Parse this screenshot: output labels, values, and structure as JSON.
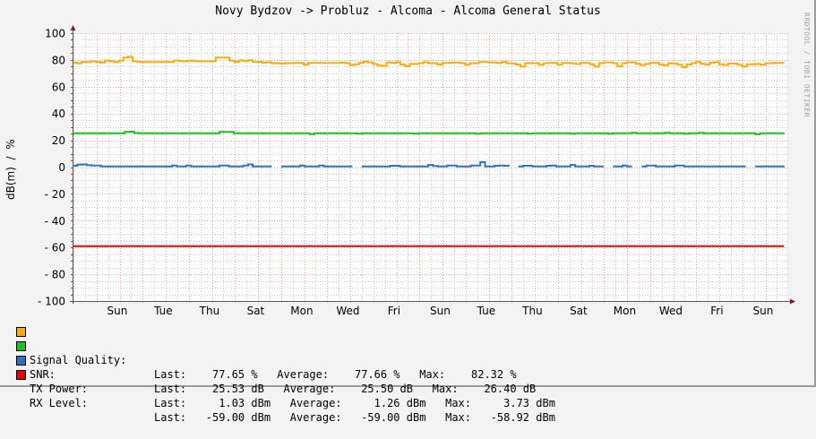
{
  "title": "Novy Bydzov -> Probluz - Alcoma - Alcoma General Status",
  "watermark": "RRDTOOL / TOBI OETIKER",
  "colors": {
    "signal_quality": "#ffab00",
    "snr": "#19c119",
    "tx_power": "#2c72cc",
    "rx_level": "#ee0000",
    "major_grid": "#e8a0a0",
    "minor_grid": "#cccccc",
    "axis": "#555555",
    "arrow": "#8b1a1a"
  },
  "chart_data": {
    "type": "line",
    "title": "Novy Bydzov -> Probluz - Alcoma - Alcoma General Status",
    "xlabel": "",
    "ylabel": "dB(m) / %",
    "ylim": [
      -100,
      100
    ],
    "yticks": [
      100,
      80,
      60,
      40,
      20,
      0,
      -20,
      -40,
      -60,
      -80,
      -100
    ],
    "ytick_labels": [
      "100",
      "80",
      "60",
      "40",
      "20",
      "0",
      "- 20",
      "- 40",
      "- 60",
      "- 80",
      "- 100"
    ],
    "xtick_labels": [
      "Sun",
      "Tue",
      "Thu",
      "Sat",
      "Mon",
      "Wed",
      "Fri",
      "Sun",
      "Tue",
      "Thu",
      "Sat",
      "Mon",
      "Wed",
      "Fri",
      "Sun"
    ],
    "grid": true,
    "legend_position": "bottom",
    "x_days": 31,
    "series": [
      {
        "name": "Signal Quality",
        "unit": "%",
        "values": [
          78,
          77.5,
          78.5,
          78.4,
          79,
          78.5,
          78,
          79.5,
          79,
          78.3,
          79.5,
          81.8,
          82.3,
          79,
          78.5,
          78.4,
          78.4,
          78.4,
          78.4,
          78.4,
          78.4,
          78.4,
          79.6,
          79.2,
          79,
          79.5,
          79.2,
          79,
          79,
          79,
          79,
          81.8,
          81.8,
          81.8,
          79.4,
          78.5,
          79.6,
          79.3,
          79.8,
          78.6,
          78.6,
          78,
          78.3,
          77.6,
          77.6,
          77.3,
          77.6,
          77.6,
          77.8,
          77.8,
          76.5,
          77.8,
          77.8,
          77.8,
          77.8,
          77.8,
          77.8,
          77.8,
          78,
          77.6,
          76.2,
          76.8,
          77.8,
          78.8,
          78.2,
          77,
          76,
          75.6,
          78.2,
          77.8,
          78.3,
          76.6,
          75.3,
          77,
          77,
          77.6,
          78.3,
          77.6,
          77.6,
          76.6,
          77.8,
          77.8,
          78,
          78,
          77.6,
          76.4,
          77.6,
          77.5,
          78.5,
          78.5,
          78.2,
          78.1,
          77.8,
          78.5,
          77.5,
          77.3,
          76.6,
          75.1,
          77.6,
          77.6,
          77.6,
          76.3,
          77.6,
          77.8,
          77.8,
          76.5,
          77.8,
          77.8,
          77.4,
          76.9,
          77.8,
          77.8,
          76.8,
          75,
          77.6,
          78.2,
          78.2,
          77.5,
          75.2,
          77.6,
          78.2,
          78.1,
          77.1,
          76.2,
          77,
          77.7,
          77.7,
          76.6,
          76.1,
          77.5,
          77.3,
          76.5,
          74.6,
          76.6,
          77.6,
          78.5,
          77.1,
          76.6,
          77.9,
          78.4,
          76.7,
          76.2,
          77.3,
          77.3,
          76.3,
          75.1,
          76.8,
          76.8,
          77,
          76.4,
          77.6,
          77.6,
          77.7,
          77.7,
          77.65
        ],
        "last": "77.65 %",
        "average": "77.66 %",
        "max": "82.32 %"
      },
      {
        "name": "SNR",
        "unit": "dB",
        "values": [
          25.3,
          25.3,
          25.3,
          25.3,
          25.3,
          25.3,
          25.3,
          25.3,
          25.3,
          25.3,
          25.3,
          26.3,
          26.4,
          25.4,
          25.3,
          25.3,
          25.3,
          25.3,
          25.3,
          25.3,
          25.3,
          25.3,
          25.3,
          25.3,
          25.3,
          25.3,
          25.3,
          25.3,
          25.3,
          25.3,
          25.3,
          26.2,
          26.2,
          26.2,
          25.3,
          25.3,
          25.3,
          25.3,
          25.3,
          25.3,
          25.3,
          25.3,
          25.3,
          25.3,
          25.3,
          25.3,
          25.3,
          25.3,
          25.3,
          25.3,
          24.6,
          25.3,
          25.3,
          25.3,
          25.3,
          25.3,
          25.3,
          25.3,
          25.3,
          25.3,
          24.9,
          25.3,
          25.3,
          25.3,
          25.3,
          25.3,
          25.3,
          25.3,
          25.3,
          25.3,
          25.3,
          25.3,
          24.9,
          25.3,
          25.3,
          25.3,
          25.3,
          25.3,
          25.3,
          25.3,
          25.3,
          25.3,
          25.3,
          25.3,
          25.3,
          24.9,
          25.3,
          25.3,
          25.3,
          25.3,
          25.3,
          25.3,
          25.3,
          25.3,
          25.3,
          25.3,
          24.9,
          25.3,
          25.3,
          25.3,
          25.3,
          25.3,
          25.3,
          25.3,
          25.3,
          24.9,
          25.3,
          25.3,
          25.3,
          25.3,
          25.3,
          25.3,
          25.3,
          24.9,
          25.3,
          25.3,
          25.3,
          25.3,
          25.6,
          25.3,
          25.3,
          25.3,
          25.3,
          25.3,
          25.3,
          25.6,
          25.3,
          25.3,
          25.3,
          24.9,
          25.3,
          25.3,
          25.6,
          25.3,
          25.3,
          25.3,
          25.3,
          25.3,
          25.3,
          25.3,
          25.3,
          25.3,
          25.3,
          25.3,
          24.6,
          25.3,
          25.3,
          25.3,
          25.3,
          25.3,
          25.53
        ],
        "last": "25.53 dB",
        "average": "25.50 dB",
        "max": "26.40 dB"
      },
      {
        "name": "TX Power",
        "unit": "dBm",
        "values": [
          1,
          1.8,
          2,
          1.4,
          1.2,
          1.2,
          0.5,
          0.5,
          0.5,
          0.5,
          0.5,
          0.5,
          0.5,
          0.5,
          0.5,
          0.5,
          0.5,
          0.5,
          0.5,
          0.5,
          0.5,
          1.2,
          0.5,
          0.5,
          1.2,
          0.5,
          0.5,
          0.5,
          0.5,
          0.5,
          0.5,
          1.2,
          1.2,
          0.5,
          0.5,
          0.5,
          1.2,
          2,
          0.5,
          0.5,
          0.5,
          0.5,
          0.5,
          null,
          0.5,
          0.5,
          0.5,
          0.5,
          1.2,
          0.5,
          0.5,
          0.5,
          1.2,
          0.5,
          0.5,
          0.5,
          0.5,
          0.5,
          0.5,
          0.5,
          null,
          0.5,
          0.5,
          0.5,
          0.5,
          0.5,
          0.5,
          1,
          1,
          0.5,
          0.5,
          0.5,
          0.5,
          0.5,
          0.5,
          1.6,
          0.8,
          0.5,
          0.5,
          1.2,
          1.2,
          0.5,
          0.5,
          0.5,
          1.2,
          1.2,
          3.7,
          0.5,
          0.5,
          1,
          1.2,
          1,
          0.5,
          null,
          0.5,
          1,
          1,
          0.5,
          0.5,
          0.5,
          1,
          1.2,
          0.5,
          0.5,
          0.5,
          1.6,
          0.5,
          0.5,
          0.5,
          1,
          0.5,
          0.5,
          0.5,
          null,
          0.5,
          0.5,
          1.2,
          0.5,
          0.5,
          null,
          0.5,
          1.2,
          1.2,
          0.5,
          0.5,
          0.5,
          0.5,
          1.2,
          1.2,
          0.5,
          0.5,
          0.5,
          0.5,
          0.5,
          0.5,
          0.5,
          0.5,
          0.5,
          0.5,
          0.5,
          0.5,
          0.5,
          0.5,
          null,
          0.5,
          0.5,
          0.5,
          0.5,
          0.5,
          0.5,
          1.03
        ],
        "last": "1.03 dBm",
        "average": "1.26 dBm",
        "max": "3.73 dBm"
      },
      {
        "name": "RX Level",
        "unit": "dBm",
        "values": [
          -59,
          -59
        ],
        "last": "-59.00 dBm",
        "average": "-59.00 dBm",
        "max": "-58.92 dBm"
      }
    ]
  },
  "legend": [
    {
      "swatch": "#ffab00",
      "name": "Signal Quality:",
      "stats": "Last:    77.65 %   Average:    77.66 %   Max:    82.32 %"
    },
    {
      "swatch": "#19c119",
      "name": "SNR:",
      "stats": "Last:    25.53 dB   Average:    25.50 dB   Max:    26.40 dB"
    },
    {
      "swatch": "#2c72cc",
      "name": "TX Power:",
      "stats": "Last:     1.03 dBm   Average:     1.26 dBm   Max:     3.73 dBm"
    },
    {
      "swatch": "#ee0000",
      "name": "RX Level:",
      "stats": "Last:   -59.00 dBm   Average:   -59.00 dBm   Max:   -58.92 dBm"
    }
  ],
  "ylabel": "dB(m)  /  %"
}
